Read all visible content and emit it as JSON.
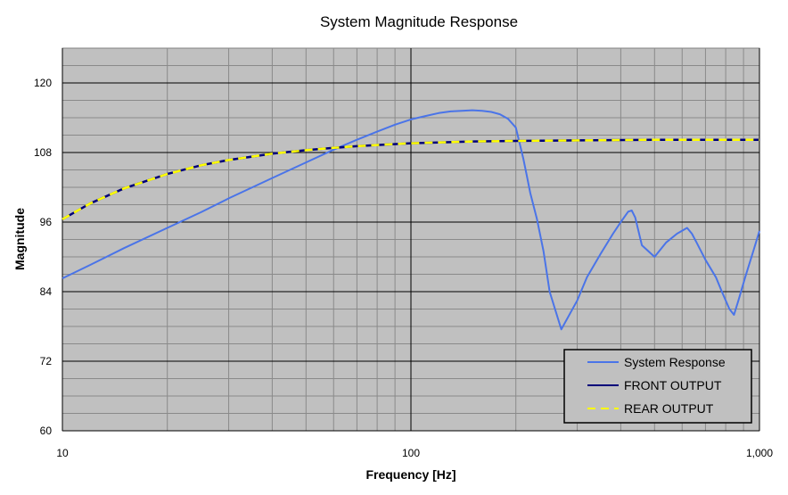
{
  "chart_data": {
    "type": "line",
    "title": "System Magnitude Response",
    "xlabel": "Frequency [Hz]",
    "ylabel": "Magnitude",
    "x_scale": "log",
    "xlim": [
      10,
      1000
    ],
    "ylim": [
      60,
      126
    ],
    "x_ticks": [
      10,
      100,
      1000
    ],
    "x_tick_labels": [
      "10",
      "100",
      "1,000"
    ],
    "y_ticks": [
      60,
      72,
      84,
      96,
      108,
      120
    ],
    "y_tick_labels": [
      "60",
      "72",
      "84",
      "96",
      "108",
      "120"
    ],
    "grid": true,
    "plot_background": "#c0c0c0",
    "legend_position": "bottom-right",
    "series": [
      {
        "name": "System Response",
        "color": "#4a74e8",
        "dash": "solid",
        "x": [
          10,
          12,
          15,
          20,
          25,
          30,
          40,
          50,
          60,
          70,
          80,
          90,
          100,
          110,
          120,
          130,
          140,
          150,
          160,
          170,
          180,
          190,
          200,
          210,
          215,
          220,
          230,
          240,
          250,
          270,
          300,
          320,
          350,
          380,
          400,
          420,
          430,
          440,
          460,
          500,
          540,
          580,
          620,
          640,
          660,
          700,
          750,
          780,
          820,
          845,
          870,
          910,
          960,
          1000
        ],
        "y": [
          86.3,
          88.6,
          91.5,
          95.0,
          97.7,
          100.1,
          103.6,
          106.3,
          108.5,
          110.2,
          111.6,
          112.8,
          113.7,
          114.3,
          114.8,
          115.1,
          115.2,
          115.3,
          115.2,
          115.0,
          114.6,
          113.8,
          112.3,
          107.0,
          104.0,
          101.0,
          96.5,
          91.0,
          84.0,
          77.5,
          82.5,
          86.5,
          90.5,
          94.0,
          96.0,
          97.8,
          98.0,
          96.8,
          92.0,
          90.0,
          92.5,
          94.0,
          95.0,
          94.0,
          92.5,
          89.5,
          86.5,
          84.0,
          81.0,
          80.0,
          82.5,
          86.5,
          91.0,
          94.5
        ]
      },
      {
        "name": "FRONT OUTPUT",
        "color": "#00007a",
        "dash": "solid",
        "x": [
          10,
          12,
          15,
          20,
          25,
          30,
          35,
          40,
          50,
          60,
          70,
          80,
          100,
          150,
          200,
          300,
          500,
          700,
          1000
        ],
        "y": [
          96.5,
          99.2,
          101.8,
          104.3,
          105.8,
          106.7,
          107.3,
          107.8,
          108.4,
          108.8,
          109.1,
          109.3,
          109.6,
          109.9,
          110.0,
          110.1,
          110.2,
          110.2,
          110.2
        ]
      },
      {
        "name": "REAR OUTPUT",
        "color": "#ffff00",
        "dash": "dashed",
        "x": [
          10,
          12,
          15,
          20,
          25,
          30,
          35,
          40,
          50,
          60,
          70,
          80,
          100,
          150,
          200,
          300,
          500,
          700,
          1000
        ],
        "y": [
          96.5,
          99.2,
          101.8,
          104.3,
          105.8,
          106.7,
          107.3,
          107.8,
          108.4,
          108.8,
          109.1,
          109.3,
          109.6,
          109.9,
          110.0,
          110.1,
          110.2,
          110.2,
          110.2
        ]
      }
    ]
  }
}
